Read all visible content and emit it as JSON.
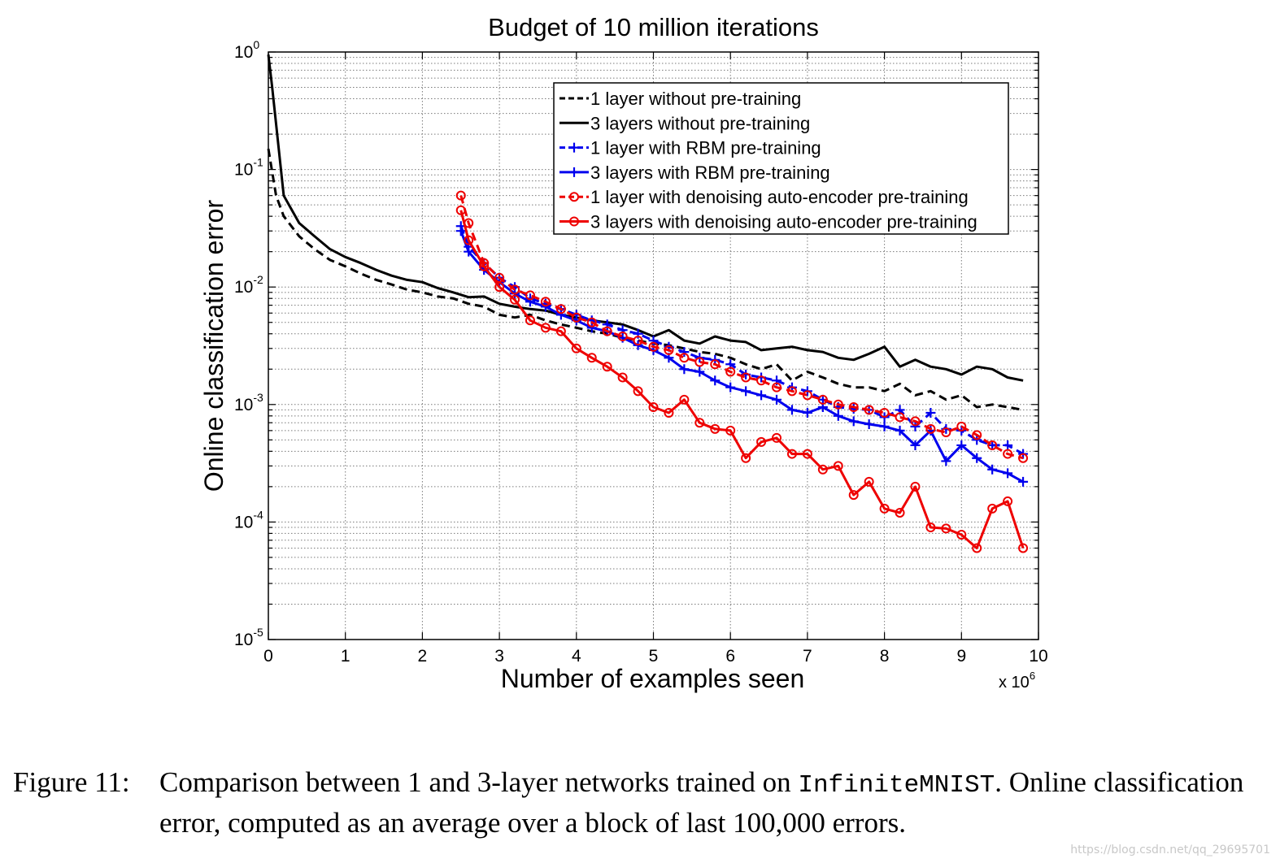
{
  "chart_data": {
    "type": "line",
    "title": "Budget of 10 million iterations",
    "xlabel": "Number of examples seen",
    "ylabel": "Online classification error",
    "x_multiplier": "x 10",
    "x_multiplier_exp": "6",
    "xlim": [
      0,
      10
    ],
    "ylim": [
      1e-05,
      1
    ],
    "yscale": "log",
    "xticks": [
      "0",
      "1",
      "2",
      "3",
      "4",
      "5",
      "6",
      "7",
      "8",
      "9",
      "10"
    ],
    "yticks": [
      {
        "base": "10",
        "exp": "0",
        "value": 1
      },
      {
        "base": "10",
        "exp": "-1",
        "value": 0.1
      },
      {
        "base": "10",
        "exp": "-2",
        "value": 0.01
      },
      {
        "base": "10",
        "exp": "-3",
        "value": 0.001
      },
      {
        "base": "10",
        "exp": "-4",
        "value": 0.0001
      },
      {
        "base": "10",
        "exp": "-5",
        "value": 1e-05
      }
    ],
    "grid": true,
    "legend_position": "top-right",
    "series": [
      {
        "name": "1 layer without pre-training",
        "color": "#000000",
        "dash": true,
        "marker": "none",
        "width": 3,
        "x": [
          0,
          0.1,
          0.2,
          0.4,
          0.6,
          0.8,
          1.0,
          1.2,
          1.4,
          1.6,
          1.8,
          2.0,
          2.2,
          2.4,
          2.6,
          2.8,
          3.0,
          3.2,
          3.4,
          3.6,
          3.8,
          4.0,
          4.2,
          4.4,
          4.6,
          4.8,
          5.0,
          5.2,
          5.4,
          5.6,
          5.8,
          6.0,
          6.2,
          6.4,
          6.6,
          6.8,
          7.0,
          7.2,
          7.4,
          7.6,
          7.8,
          8.0,
          8.2,
          8.4,
          8.6,
          8.8,
          9.0,
          9.2,
          9.4,
          9.6,
          9.8
        ],
        "y": [
          0.15,
          0.06,
          0.04,
          0.027,
          0.021,
          0.017,
          0.015,
          0.013,
          0.0115,
          0.0105,
          0.0095,
          0.009,
          0.0083,
          0.008,
          0.0072,
          0.0068,
          0.0058,
          0.0055,
          0.0058,
          0.0052,
          0.0048,
          0.0045,
          0.0042,
          0.004,
          0.0037,
          0.0035,
          0.0033,
          0.0032,
          0.003,
          0.0028,
          0.0027,
          0.0025,
          0.0022,
          0.002,
          0.0022,
          0.0016,
          0.0019,
          0.0017,
          0.0015,
          0.0014,
          0.0014,
          0.0013,
          0.0015,
          0.0012,
          0.0013,
          0.0011,
          0.0012,
          0.00095,
          0.001,
          0.00095,
          0.0009
        ]
      },
      {
        "name": "3 layers without pre-training",
        "color": "#000000",
        "dash": false,
        "marker": "none",
        "width": 3,
        "x": [
          0,
          0.05,
          0.2,
          0.4,
          0.6,
          0.8,
          1.0,
          1.2,
          1.4,
          1.6,
          1.8,
          2.0,
          2.2,
          2.4,
          2.6,
          2.8,
          3.0,
          3.2,
          3.4,
          3.6,
          3.8,
          4.0,
          4.2,
          4.4,
          4.6,
          4.8,
          5.0,
          5.2,
          5.4,
          5.6,
          5.8,
          6.0,
          6.2,
          6.4,
          6.6,
          6.8,
          7.0,
          7.2,
          7.4,
          7.6,
          7.8,
          8.0,
          8.2,
          8.4,
          8.6,
          8.8,
          9.0,
          9.2,
          9.4,
          9.6,
          9.8
        ],
        "y": [
          0.95,
          0.5,
          0.06,
          0.035,
          0.027,
          0.021,
          0.018,
          0.016,
          0.014,
          0.0125,
          0.0115,
          0.011,
          0.0098,
          0.009,
          0.0082,
          0.0083,
          0.0072,
          0.0068,
          0.0065,
          0.0063,
          0.0058,
          0.0055,
          0.0052,
          0.005,
          0.0048,
          0.0043,
          0.0038,
          0.0043,
          0.0035,
          0.0033,
          0.0038,
          0.0035,
          0.0034,
          0.0029,
          0.003,
          0.0031,
          0.0029,
          0.0028,
          0.0025,
          0.0024,
          0.0027,
          0.0031,
          0.0021,
          0.0024,
          0.0021,
          0.002,
          0.0018,
          0.0021,
          0.002,
          0.0017,
          0.0016
        ]
      },
      {
        "name": "1 layer with RBM pre-training",
        "color": "#0000ee",
        "dash": true,
        "marker": "plus",
        "width": 3,
        "x": [
          2.5,
          2.6,
          2.8,
          3.0,
          3.2,
          3.4,
          3.6,
          3.8,
          4.0,
          4.2,
          4.4,
          4.6,
          4.8,
          5.0,
          5.2,
          5.4,
          5.6,
          5.8,
          6.0,
          6.2,
          6.4,
          6.6,
          6.8,
          7.0,
          7.2,
          7.4,
          7.6,
          7.8,
          8.0,
          8.2,
          8.4,
          8.6,
          8.8,
          9.0,
          9.2,
          9.4,
          9.6,
          9.8
        ],
        "y": [
          0.033,
          0.022,
          0.016,
          0.012,
          0.01,
          0.008,
          0.0072,
          0.0065,
          0.0058,
          0.0052,
          0.0048,
          0.0043,
          0.004,
          0.0035,
          0.0031,
          0.0028,
          0.0025,
          0.0024,
          0.0022,
          0.0018,
          0.0017,
          0.0016,
          0.0014,
          0.0013,
          0.0011,
          0.00095,
          0.00092,
          0.0009,
          0.00078,
          0.0009,
          0.00065,
          0.00085,
          0.00062,
          0.0006,
          0.0005,
          0.00045,
          0.00045,
          0.00038
        ]
      },
      {
        "name": "3 layers with RBM pre-training",
        "color": "#0000ee",
        "dash": false,
        "marker": "plus",
        "width": 3,
        "x": [
          2.5,
          2.6,
          2.8,
          3.0,
          3.2,
          3.4,
          3.6,
          3.8,
          4.0,
          4.2,
          4.4,
          4.6,
          4.8,
          5.0,
          5.2,
          5.4,
          5.6,
          5.8,
          6.0,
          6.2,
          6.4,
          6.6,
          6.8,
          7.0,
          7.2,
          7.4,
          7.6,
          7.8,
          8.0,
          8.2,
          8.4,
          8.6,
          8.8,
          9.0,
          9.2,
          9.4,
          9.6,
          9.8
        ],
        "y": [
          0.03,
          0.02,
          0.014,
          0.011,
          0.0088,
          0.0075,
          0.0068,
          0.0058,
          0.0052,
          0.0045,
          0.0042,
          0.0037,
          0.0032,
          0.0029,
          0.0025,
          0.002,
          0.0019,
          0.0016,
          0.0014,
          0.0013,
          0.0012,
          0.0011,
          0.0009,
          0.00085,
          0.00095,
          0.0008,
          0.00072,
          0.00068,
          0.00065,
          0.0006,
          0.00045,
          0.0006,
          0.00033,
          0.00045,
          0.00035,
          0.00028,
          0.00026,
          0.00022
        ]
      },
      {
        "name": "1 layer with denoising auto-encoder pre-training",
        "color": "#ee0000",
        "dash": true,
        "marker": "circle",
        "width": 3,
        "x": [
          2.5,
          2.6,
          2.8,
          3.0,
          3.2,
          3.4,
          3.6,
          3.8,
          4.0,
          4.2,
          4.4,
          4.6,
          4.8,
          5.0,
          5.2,
          5.4,
          5.6,
          5.8,
          6.0,
          6.2,
          6.4,
          6.6,
          6.8,
          7.0,
          7.2,
          7.4,
          7.6,
          7.8,
          8.0,
          8.2,
          8.4,
          8.6,
          8.8,
          9.0,
          9.2,
          9.4,
          9.6,
          9.8
        ],
        "y": [
          0.06,
          0.035,
          0.016,
          0.012,
          0.0095,
          0.0085,
          0.0075,
          0.0065,
          0.0055,
          0.005,
          0.0042,
          0.0038,
          0.0035,
          0.0031,
          0.0029,
          0.0025,
          0.0023,
          0.0022,
          0.0019,
          0.0017,
          0.0016,
          0.0014,
          0.0013,
          0.0012,
          0.0011,
          0.001,
          0.00095,
          0.0009,
          0.00085,
          0.00078,
          0.00072,
          0.00062,
          0.00058,
          0.00065,
          0.00055,
          0.00045,
          0.00038,
          0.00035
        ]
      },
      {
        "name": "3 layers with denoising auto-encoder pre-training",
        "color": "#ee0000",
        "dash": false,
        "marker": "circle",
        "width": 3,
        "x": [
          2.5,
          2.6,
          2.8,
          3.0,
          3.2,
          3.4,
          3.6,
          3.8,
          4.0,
          4.2,
          4.4,
          4.6,
          4.8,
          5.0,
          5.2,
          5.4,
          5.6,
          5.8,
          6.0,
          6.2,
          6.4,
          6.6,
          6.8,
          7.0,
          7.2,
          7.4,
          7.6,
          7.8,
          8.0,
          8.2,
          8.4,
          8.6,
          8.8,
          9.0,
          9.2,
          9.4,
          9.6,
          9.8
        ],
        "y": [
          0.045,
          0.025,
          0.015,
          0.01,
          0.0078,
          0.0052,
          0.0045,
          0.0042,
          0.003,
          0.0025,
          0.0021,
          0.0017,
          0.0013,
          0.00095,
          0.00085,
          0.0011,
          0.0007,
          0.00062,
          0.0006,
          0.00035,
          0.00048,
          0.00052,
          0.00038,
          0.00038,
          0.00028,
          0.0003,
          0.00017,
          0.00022,
          0.00013,
          0.00012,
          0.0002,
          9e-05,
          8.8e-05,
          7.8e-05,
          6e-05,
          0.00013,
          0.00015,
          6e-05
        ]
      }
    ]
  },
  "caption": {
    "label": "Figure 11:",
    "text_before": "Comparison between 1 and 3-layer networks trained on ",
    "dataset": "InfiniteMNIST",
    "text_after": ". Online classification error, computed as an average over a block of last 100,000 errors."
  },
  "watermark": "https://blog.csdn.net/qq_29695701"
}
